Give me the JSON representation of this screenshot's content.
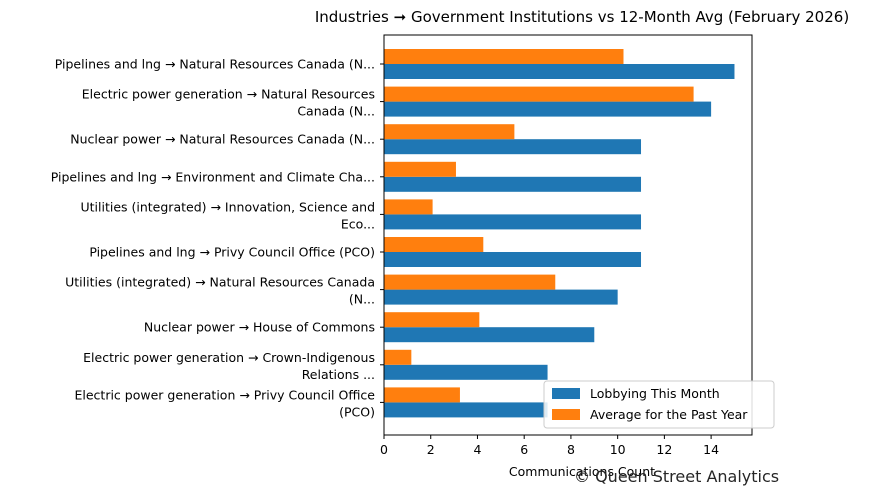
{
  "chart_data": {
    "type": "bar",
    "orientation": "horizontal",
    "title": "Industries ➞ Government Institutions vs 12-Month Avg (February 2026)",
    "xlabel": "Communications Count",
    "ylabel": "",
    "xlim": [
      0,
      15.75
    ],
    "xticks": [
      0,
      2,
      4,
      6,
      8,
      10,
      12,
      14
    ],
    "grid": false,
    "legend_position": "bottom-right",
    "categories": [
      [
        "Pipelines and lng → Natural Resources Canada (N..."
      ],
      [
        "Electric power generation → Natural Resources",
        "Canada (N..."
      ],
      [
        "Nuclear power → Natural Resources Canada (N..."
      ],
      [
        "Pipelines and lng → Environment and Climate Cha..."
      ],
      [
        "Utilities (integrated) → Innovation, Science and",
        "Eco..."
      ],
      [
        "Pipelines and lng → Privy Council Office (PCO)"
      ],
      [
        "Utilities (integrated) → Natural Resources Canada",
        "(N..."
      ],
      [
        "Nuclear power → House of Commons"
      ],
      [
        "Electric power generation → Crown-Indigenous",
        "Relations ..."
      ],
      [
        "Electric power generation → Privy Council Office",
        "(PCO)"
      ]
    ],
    "series": [
      {
        "name": "Lobbying This Month",
        "color": "#1f77b4",
        "values": [
          15,
          14,
          11,
          11,
          11,
          11,
          10,
          9,
          7,
          7
        ]
      },
      {
        "name": "Average for the Past Year",
        "color": "#ff7f0e",
        "values": [
          10.25,
          13.25,
          5.58,
          3.08,
          2.08,
          4.25,
          7.33,
          4.08,
          1.17,
          3.25
        ]
      }
    ]
  },
  "credit": "© Queen Street Analytics"
}
